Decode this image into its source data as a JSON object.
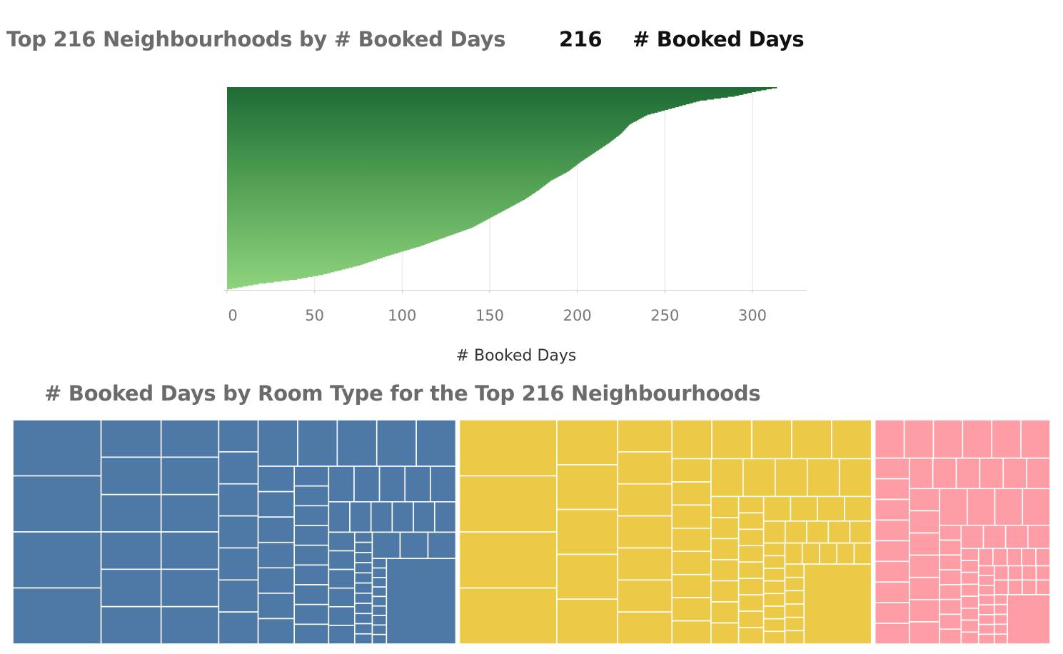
{
  "header": {
    "title": "Top 216  Neighbourhoods by # Booked Days",
    "parameter_value": "216",
    "parameter_label": "# Booked Days"
  },
  "chart_data": [
    {
      "type": "bar",
      "orientation": "horizontal",
      "title": "Top 216  Neighbourhoods by # Booked Days",
      "xlabel": "# Booked Days",
      "xlim": [
        -5,
        330
      ],
      "ticks": [
        0,
        50,
        100,
        150,
        200,
        250,
        300
      ],
      "grid": true,
      "bar_count": 216,
      "color_scale": [
        "#1e6b35",
        "#8fd47e"
      ],
      "value_profile": [
        {
          "rank": 1,
          "value": 314
        },
        {
          "rank": 5,
          "value": 302
        },
        {
          "rank": 10,
          "value": 290
        },
        {
          "rank": 15,
          "value": 270
        },
        {
          "rank": 20,
          "value": 260
        },
        {
          "rank": 30,
          "value": 240
        },
        {
          "rank": 40,
          "value": 230
        },
        {
          "rank": 50,
          "value": 225
        },
        {
          "rank": 60,
          "value": 218
        },
        {
          "rank": 70,
          "value": 210
        },
        {
          "rank": 80,
          "value": 202
        },
        {
          "rank": 90,
          "value": 195
        },
        {
          "rank": 100,
          "value": 185
        },
        {
          "rank": 110,
          "value": 178
        },
        {
          "rank": 120,
          "value": 170
        },
        {
          "rank": 130,
          "value": 160
        },
        {
          "rank": 140,
          "value": 150
        },
        {
          "rank": 150,
          "value": 140
        },
        {
          "rank": 160,
          "value": 125
        },
        {
          "rank": 170,
          "value": 110
        },
        {
          "rank": 180,
          "value": 92
        },
        {
          "rank": 190,
          "value": 76
        },
        {
          "rank": 200,
          "value": 55
        },
        {
          "rank": 205,
          "value": 40
        },
        {
          "rank": 210,
          "value": 18
        },
        {
          "rank": 216,
          "value": 0
        }
      ]
    },
    {
      "type": "treemap",
      "title": "# Booked Days by Room Type for the Top 216 Neighbourhoods",
      "groups": [
        {
          "color": "#4e79a7",
          "share": 0.43
        },
        {
          "color": "#edc948",
          "share": 0.4
        },
        {
          "color": "#ff9da7",
          "share": 0.17
        }
      ]
    }
  ]
}
